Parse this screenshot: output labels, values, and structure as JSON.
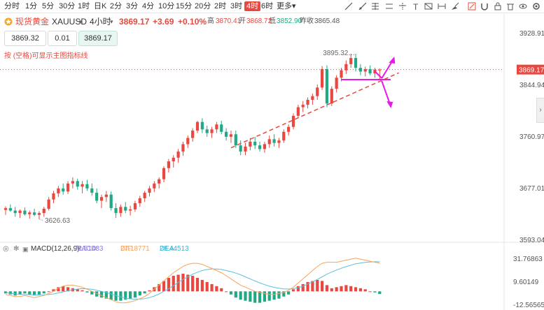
{
  "toolbar": {
    "timeframes": [
      "分时",
      "1分",
      "5分",
      "30分",
      "1时",
      "日K",
      "2分",
      "3分",
      "4分",
      "10分",
      "15分",
      "20分",
      "2时",
      "3时",
      "4时",
      "6时",
      "更多"
    ],
    "active_timeframe": "4时",
    "more_arrow": "▾"
  },
  "header": {
    "star_icon": "star-icon",
    "name": "现货黄金",
    "symbol": "XAUUSD",
    "period": "4小时",
    "price": "3869.17",
    "change": "+3.69",
    "change_pct": "+0.10%",
    "high_label": "高",
    "high": "3870.41",
    "open_label": "开",
    "open": "3868.72",
    "low_label": "低",
    "low": "3852.90",
    "prev_label": "昨收",
    "prev": "3865.48"
  },
  "trade": {
    "sell_price": "3869.32",
    "quantity": "0.01",
    "buy_price": "3869.17"
  },
  "hint": "按 (空格)可显示主图指标线",
  "macd": {
    "label": "MACD(12,26,9)",
    "macd_label": "MACD:",
    "macd_value": "-2.51483",
    "dif_label": "DIF:",
    "dif_value": "27.18771",
    "dea_label": "DEA:",
    "dea_value": "28.44513"
  },
  "colors": {
    "up": "#e8483f",
    "down": "#22a884",
    "trendline": "#e8483f",
    "annotation": "#e619e6",
    "dif": "#f7a35c",
    "dea": "#5bc0de",
    "macd_label": "#8a7fdc"
  },
  "chart_data": [
    {
      "type": "candlestick",
      "ylim": [
        3593.04,
        3928.91
      ],
      "yticks": [
        "3928.91",
        "3844.94",
        "3760.97",
        "3677.01",
        "3593.04"
      ],
      "last_price_label": "3869.17",
      "annotations": [
        "3895.32",
        "3626.63"
      ],
      "ohlc": [
        [
          3641,
          3647,
          3633,
          3644
        ],
        [
          3644,
          3650,
          3638,
          3640
        ],
        [
          3640,
          3646,
          3630,
          3636
        ],
        [
          3636,
          3642,
          3628,
          3640
        ],
        [
          3640,
          3645,
          3632,
          3634
        ],
        [
          3634,
          3640,
          3627,
          3637
        ],
        [
          3637,
          3643,
          3631,
          3633
        ],
        [
          3633,
          3639,
          3626,
          3636
        ],
        [
          3636,
          3646,
          3630,
          3643
        ],
        [
          3643,
          3662,
          3640,
          3658
        ],
        [
          3658,
          3672,
          3652,
          3668
        ],
        [
          3668,
          3680,
          3662,
          3676
        ],
        [
          3676,
          3684,
          3666,
          3671
        ],
        [
          3671,
          3688,
          3667,
          3684
        ],
        [
          3684,
          3694,
          3676,
          3688
        ],
        [
          3688,
          3692,
          3674,
          3679
        ],
        [
          3679,
          3688,
          3668,
          3683
        ],
        [
          3683,
          3690,
          3672,
          3676
        ],
        [
          3676,
          3684,
          3664,
          3669
        ],
        [
          3669,
          3676,
          3652,
          3656
        ],
        [
          3656,
          3666,
          3644,
          3662
        ],
        [
          3662,
          3672,
          3654,
          3666
        ],
        [
          3666,
          3671,
          3640,
          3644
        ],
        [
          3644,
          3652,
          3628,
          3636
        ],
        [
          3636,
          3650,
          3630,
          3646
        ],
        [
          3646,
          3654,
          3636,
          3640
        ],
        [
          3640,
          3648,
          3632,
          3642
        ],
        [
          3642,
          3656,
          3638,
          3652
        ],
        [
          3652,
          3664,
          3646,
          3660
        ],
        [
          3660,
          3672,
          3654,
          3669
        ],
        [
          3669,
          3680,
          3663,
          3676
        ],
        [
          3676,
          3688,
          3670,
          3684
        ],
        [
          3684,
          3694,
          3676,
          3691
        ],
        [
          3691,
          3712,
          3686,
          3709
        ],
        [
          3709,
          3724,
          3702,
          3720
        ],
        [
          3720,
          3730,
          3710,
          3726
        ],
        [
          3726,
          3740,
          3718,
          3736
        ],
        [
          3736,
          3752,
          3729,
          3748
        ],
        [
          3748,
          3762,
          3742,
          3758
        ],
        [
          3758,
          3774,
          3752,
          3770
        ],
        [
          3770,
          3786,
          3766,
          3784
        ],
        [
          3784,
          3790,
          3766,
          3772
        ],
        [
          3772,
          3778,
          3760,
          3766
        ],
        [
          3766,
          3776,
          3758,
          3772
        ],
        [
          3772,
          3784,
          3766,
          3780
        ],
        [
          3780,
          3786,
          3764,
          3768
        ],
        [
          3768,
          3774,
          3754,
          3760
        ],
        [
          3760,
          3770,
          3750,
          3764
        ],
        [
          3764,
          3770,
          3742,
          3746
        ],
        [
          3746,
          3754,
          3730,
          3736
        ],
        [
          3736,
          3750,
          3730,
          3744
        ],
        [
          3744,
          3758,
          3738,
          3752
        ],
        [
          3752,
          3760,
          3740,
          3746
        ],
        [
          3746,
          3752,
          3736,
          3740
        ],
        [
          3740,
          3752,
          3734,
          3748
        ],
        [
          3748,
          3762,
          3742,
          3756
        ],
        [
          3756,
          3764,
          3744,
          3750
        ],
        [
          3750,
          3758,
          3742,
          3754
        ],
        [
          3754,
          3772,
          3750,
          3768
        ],
        [
          3768,
          3780,
          3762,
          3776
        ],
        [
          3776,
          3798,
          3772,
          3794
        ],
        [
          3794,
          3812,
          3790,
          3808
        ],
        [
          3808,
          3818,
          3800,
          3812
        ],
        [
          3812,
          3824,
          3806,
          3820
        ],
        [
          3820,
          3830,
          3812,
          3826
        ],
        [
          3826,
          3845,
          3820,
          3840
        ],
        [
          3840,
          3875,
          3836,
          3870
        ],
        [
          3870,
          3876,
          3808,
          3814
        ],
        [
          3814,
          3842,
          3810,
          3838
        ],
        [
          3838,
          3860,
          3832,
          3856
        ],
        [
          3856,
          3872,
          3850,
          3868
        ],
        [
          3868,
          3884,
          3862,
          3878
        ],
        [
          3878,
          3895,
          3872,
          3888
        ],
        [
          3888,
          3895,
          3866,
          3872
        ],
        [
          3872,
          3878,
          3860,
          3866
        ],
        [
          3866,
          3874,
          3858,
          3870
        ],
        [
          3870,
          3876,
          3860,
          3863
        ],
        [
          3863,
          3872,
          3856,
          3869
        ],
        [
          3869,
          3871,
          3853,
          3869
        ]
      ],
      "trendline": [
        [
          3742,
          3850
        ],
        [
          47,
          78
        ]
      ]
    },
    {
      "type": "bar",
      "name": "MACD",
      "ylim": [
        -12.56565,
        31.76863
      ],
      "yticks": [
        "31.76863",
        "9.60149",
        "-12.56565"
      ],
      "hist": [
        -2,
        -3,
        -4,
        -3,
        -2,
        -3,
        -4,
        -3,
        -2,
        0,
        2,
        4,
        5,
        4,
        3,
        2,
        1,
        -1,
        -3,
        -5,
        -6,
        -7,
        -8,
        -9,
        -9,
        -8,
        -7,
        -6,
        -4,
        -2,
        1,
        4,
        7,
        10,
        13,
        15,
        16,
        17,
        16,
        15,
        13,
        11,
        9,
        7,
        5,
        3,
        0,
        -3,
        -6,
        -8,
        -9,
        -10,
        -11,
        -11,
        -10,
        -9,
        -8,
        -7,
        -5,
        -3,
        2,
        5,
        7,
        9,
        10,
        11,
        10,
        6,
        3,
        4,
        5,
        6,
        5,
        4,
        3,
        2,
        0,
        -1,
        -2.5
      ],
      "dif": [
        -3,
        -4,
        -5,
        -5,
        -4,
        -5,
        -6,
        -5,
        -4,
        -2,
        0,
        3,
        5,
        6,
        6,
        5,
        4,
        2,
        0,
        -2,
        -4,
        -6,
        -8,
        -10,
        -11,
        -11,
        -10,
        -9,
        -7,
        -5,
        -2,
        2,
        6,
        10,
        14,
        18,
        21,
        24,
        26,
        27,
        27,
        26,
        24,
        22,
        20,
        18,
        15,
        12,
        9,
        6,
        4,
        2,
        0,
        -1,
        -2,
        -3,
        -3,
        -2,
        -1,
        1,
        4,
        8,
        12,
        16,
        20,
        24,
        27,
        28,
        28,
        28,
        29,
        30,
        31,
        32,
        31,
        30,
        29,
        28,
        27.2
      ],
      "dea": [
        -1,
        -2,
        -2.5,
        -3,
        -3,
        -3.2,
        -3.5,
        -3.5,
        -3.3,
        -3,
        -2.5,
        -1.5,
        -0.5,
        0.5,
        1.5,
        2.2,
        2.6,
        2.5,
        2,
        1,
        0,
        -1.2,
        -2.5,
        -4,
        -5.3,
        -6.5,
        -7.2,
        -7.5,
        -7.4,
        -7,
        -6,
        -4.5,
        -2.5,
        0,
        2.5,
        5.5,
        8.5,
        11.5,
        14,
        16.5,
        18.5,
        20,
        21,
        21.5,
        21.5,
        21,
        20,
        19,
        17.5,
        16,
        14,
        12,
        10,
        8.2,
        6.5,
        5,
        3.8,
        3,
        2.4,
        2.2,
        2.6,
        3.5,
        5,
        7,
        9.2,
        11.5,
        14,
        16.5,
        18.6,
        20.5,
        22.2,
        23.8,
        25.2,
        26.5,
        27.3,
        27.9,
        28.3,
        28.5,
        28.44513
      ]
    }
  ]
}
